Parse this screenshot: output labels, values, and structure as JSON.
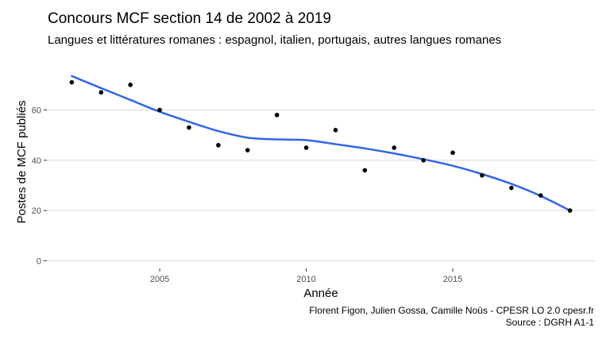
{
  "title": "Concours MCF section 14 de 2002 à 2019",
  "subtitle": "Langues et littératures romanes : espagnol, italien, portugais, autres langues romanes",
  "caption": {
    "line1": "Florent Figon, Julien Gossa, Camille Noûs - CPESR LO 2.0 cpesr.fr",
    "line2": "Source : DGRH A1-1"
  },
  "colors": {
    "smooth_line": "#3366e6",
    "points": "#000000",
    "grid": "#d9d9d9"
  },
  "chart_data": {
    "type": "scatter",
    "xlabel": "Année",
    "ylabel": "Postes de MCF publiés",
    "xlim": [
      2001.15,
      2019.85
    ],
    "ylim": [
      -3,
      81
    ],
    "x_ticks": [
      2005,
      2010,
      2015
    ],
    "y_ticks": [
      0,
      20,
      40,
      60
    ],
    "grid": "horizontal",
    "points": [
      {
        "x": 2002,
        "y": 71
      },
      {
        "x": 2003,
        "y": 67
      },
      {
        "x": 2004,
        "y": 70
      },
      {
        "x": 2005,
        "y": 60
      },
      {
        "x": 2006,
        "y": 53
      },
      {
        "x": 2007,
        "y": 46
      },
      {
        "x": 2008,
        "y": 44
      },
      {
        "x": 2009,
        "y": 58
      },
      {
        "x": 2010,
        "y": 45
      },
      {
        "x": 2011,
        "y": 52
      },
      {
        "x": 2012,
        "y": 36
      },
      {
        "x": 2013,
        "y": 45
      },
      {
        "x": 2014,
        "y": 40
      },
      {
        "x": 2015,
        "y": 43
      },
      {
        "x": 2016,
        "y": 34
      },
      {
        "x": 2017,
        "y": 29
      },
      {
        "x": 2018,
        "y": 26
      },
      {
        "x": 2019,
        "y": 20
      }
    ],
    "smooth": [
      {
        "x": 2002,
        "y": 73.5
      },
      {
        "x": 2003,
        "y": 68.7
      },
      {
        "x": 2004,
        "y": 64
      },
      {
        "x": 2005,
        "y": 59.3
      },
      {
        "x": 2006,
        "y": 55.3
      },
      {
        "x": 2007,
        "y": 51.6
      },
      {
        "x": 2008,
        "y": 49
      },
      {
        "x": 2009,
        "y": 48.3
      },
      {
        "x": 2010,
        "y": 48
      },
      {
        "x": 2011,
        "y": 46.4
      },
      {
        "x": 2012,
        "y": 44.7
      },
      {
        "x": 2013,
        "y": 42.7
      },
      {
        "x": 2014,
        "y": 40.4
      },
      {
        "x": 2015,
        "y": 37.8
      },
      {
        "x": 2016,
        "y": 34.5
      },
      {
        "x": 2017,
        "y": 30.6
      },
      {
        "x": 2018,
        "y": 25.8
      },
      {
        "x": 2019,
        "y": 20
      }
    ]
  }
}
